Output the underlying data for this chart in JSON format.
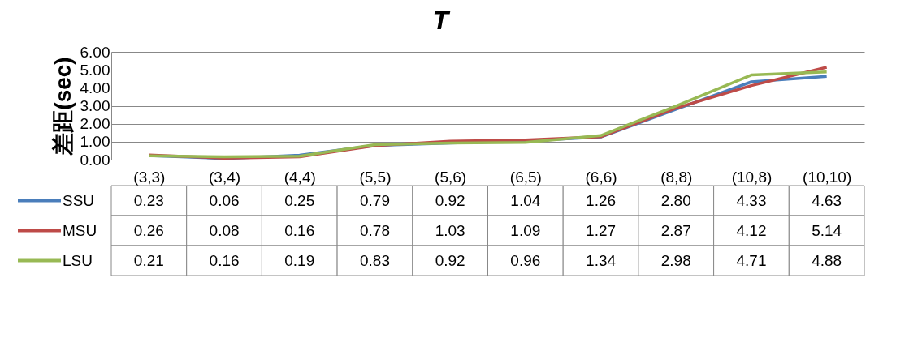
{
  "chart_data": {
    "type": "line",
    "title": "T",
    "ylabel": "差距(sec)",
    "categories": [
      "(3,3)",
      "(3,4)",
      "(4,4)",
      "(5,5)",
      "(5,6)",
      "(6,5)",
      "(6,6)",
      "(8,8)",
      "(10,8)",
      "(10,10)"
    ],
    "series": [
      {
        "name": "SSU",
        "color": "#4a7ebb",
        "values": [
          0.23,
          0.06,
          0.25,
          0.79,
          0.92,
          1.04,
          1.26,
          2.8,
          4.33,
          4.63
        ],
        "value_labels": [
          "0.23",
          "0.06",
          "0.25",
          "0.79",
          "0.92",
          "1.04",
          "1.26",
          "2.80",
          "4.33",
          "4.63"
        ]
      },
      {
        "name": "MSU",
        "color": "#be4b48",
        "values": [
          0.26,
          0.08,
          0.16,
          0.78,
          1.03,
          1.09,
          1.27,
          2.87,
          4.12,
          5.14
        ],
        "value_labels": [
          "0.26",
          "0.08",
          "0.16",
          "0.78",
          "1.03",
          "1.09",
          "1.27",
          "2.87",
          "4.12",
          "5.14"
        ]
      },
      {
        "name": "LSU",
        "color": "#98b954",
        "values": [
          0.21,
          0.16,
          0.19,
          0.83,
          0.92,
          0.96,
          1.34,
          2.98,
          4.71,
          4.88
        ],
        "value_labels": [
          "0.21",
          "0.16",
          "0.19",
          "0.83",
          "0.92",
          "0.96",
          "1.34",
          "2.98",
          "4.71",
          "4.88"
        ]
      }
    ],
    "ylim": [
      0,
      6
    ],
    "yticks": [
      {
        "value": 0,
        "label": "0.00"
      },
      {
        "value": 1,
        "label": "1.00"
      },
      {
        "value": 2,
        "label": "2.00"
      },
      {
        "value": 3,
        "label": "3.00"
      },
      {
        "value": 4,
        "label": "4.00"
      },
      {
        "value": 5,
        "label": "5.00"
      },
      {
        "value": 6,
        "label": "6.00"
      }
    ],
    "grid": "y",
    "legend": "bottom",
    "marker": "none",
    "line_style": "solid"
  }
}
